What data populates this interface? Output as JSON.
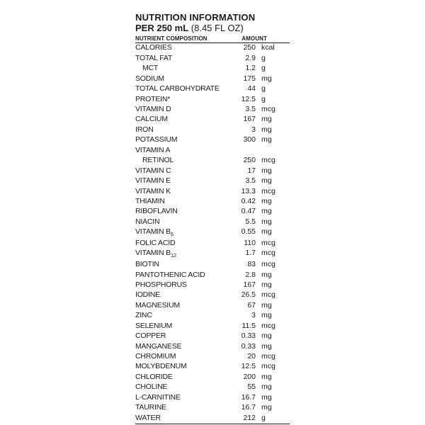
{
  "title": "NUTRITION INFORMATION",
  "serving_bold": "PER 250 mL",
  "serving_paren": "(8.45 FL OZ)",
  "header_col1": "NUTRIENT COMPOSITION",
  "header_col2": "AMOUNT",
  "rows": [
    {
      "name": "CALORIES",
      "amount": "250",
      "unit": "kcal"
    },
    {
      "name": "TOTAL FAT",
      "amount": "2.9",
      "unit": "g"
    },
    {
      "name": "MCT",
      "amount": "1.2",
      "unit": "g",
      "indent": true
    },
    {
      "name": "SODIUM",
      "amount": "175",
      "unit": "mg"
    },
    {
      "name": "TOTAL CARBOHYDRATE",
      "amount": "44",
      "unit": "g"
    },
    {
      "name": "PROTEIN*",
      "amount": "12.5",
      "unit": "g"
    },
    {
      "name": "VITAMIN D",
      "amount": "3.5",
      "unit": "mcg"
    },
    {
      "name": "CALCIUM",
      "amount": "167",
      "unit": "mg"
    },
    {
      "name": "IRON",
      "amount": "3",
      "unit": "mg"
    },
    {
      "name": "POTASSIUM",
      "amount": "300",
      "unit": "mg"
    },
    {
      "name": "VITAMIN A",
      "amount": "",
      "unit": ""
    },
    {
      "name": "RETINOL",
      "amount": "250",
      "unit": "mcg",
      "indent": true
    },
    {
      "name": "VITAMIN C",
      "amount": "17",
      "unit": "mg"
    },
    {
      "name": "VITAMIN E",
      "amount": "3.5",
      "unit": "mg"
    },
    {
      "name": "VITAMIN K",
      "amount": "13.3",
      "unit": "mcg"
    },
    {
      "name": "THIAMIN",
      "amount": "0.42",
      "unit": "mg"
    },
    {
      "name": "RIBOFLAVIN",
      "amount": "0.47",
      "unit": "mg"
    },
    {
      "name": "NIACIN",
      "amount": "5.5",
      "unit": "mg"
    },
    {
      "name": "VITAMIN B",
      "sub": "6",
      "amount": "0.55",
      "unit": "mg"
    },
    {
      "name": "FOLIC ACID",
      "amount": "110",
      "unit": "mcg"
    },
    {
      "name": "VITAMIN B",
      "sub": "12",
      "amount": "1.7",
      "unit": "mcg"
    },
    {
      "name": "BIOTIN",
      "amount": "83",
      "unit": "mcg"
    },
    {
      "name": "PANTOTHENIC ACID",
      "amount": "2.8",
      "unit": "mg"
    },
    {
      "name": "PHOSPHORUS",
      "amount": "167",
      "unit": "mg"
    },
    {
      "name": "IODINE",
      "amount": "26.5",
      "unit": "mcg"
    },
    {
      "name": "MAGNESIUM",
      "amount": "67",
      "unit": "mg"
    },
    {
      "name": "ZINC",
      "amount": "3",
      "unit": "mg"
    },
    {
      "name": "SELENIUM",
      "amount": "11.5",
      "unit": "mcg"
    },
    {
      "name": "COPPER",
      "amount": "0.33",
      "unit": "mg"
    },
    {
      "name": "MANGANESE",
      "amount": "0.33",
      "unit": "mg"
    },
    {
      "name": "CHROMIUM",
      "amount": "20",
      "unit": "mcg"
    },
    {
      "name": "MOLYBDENUM",
      "amount": "12.5",
      "unit": "mcg"
    },
    {
      "name": "CHLORIDE",
      "amount": "200",
      "unit": "mg"
    },
    {
      "name": "CHOLINE",
      "amount": "55",
      "unit": "mg"
    },
    {
      "name": "L-CARNITINE",
      "amount": "16.7",
      "unit": "mg"
    },
    {
      "name": "TAURINE",
      "amount": "16.7",
      "unit": "mg"
    },
    {
      "name": "WATER",
      "amount": "212",
      "unit": "g"
    }
  ]
}
